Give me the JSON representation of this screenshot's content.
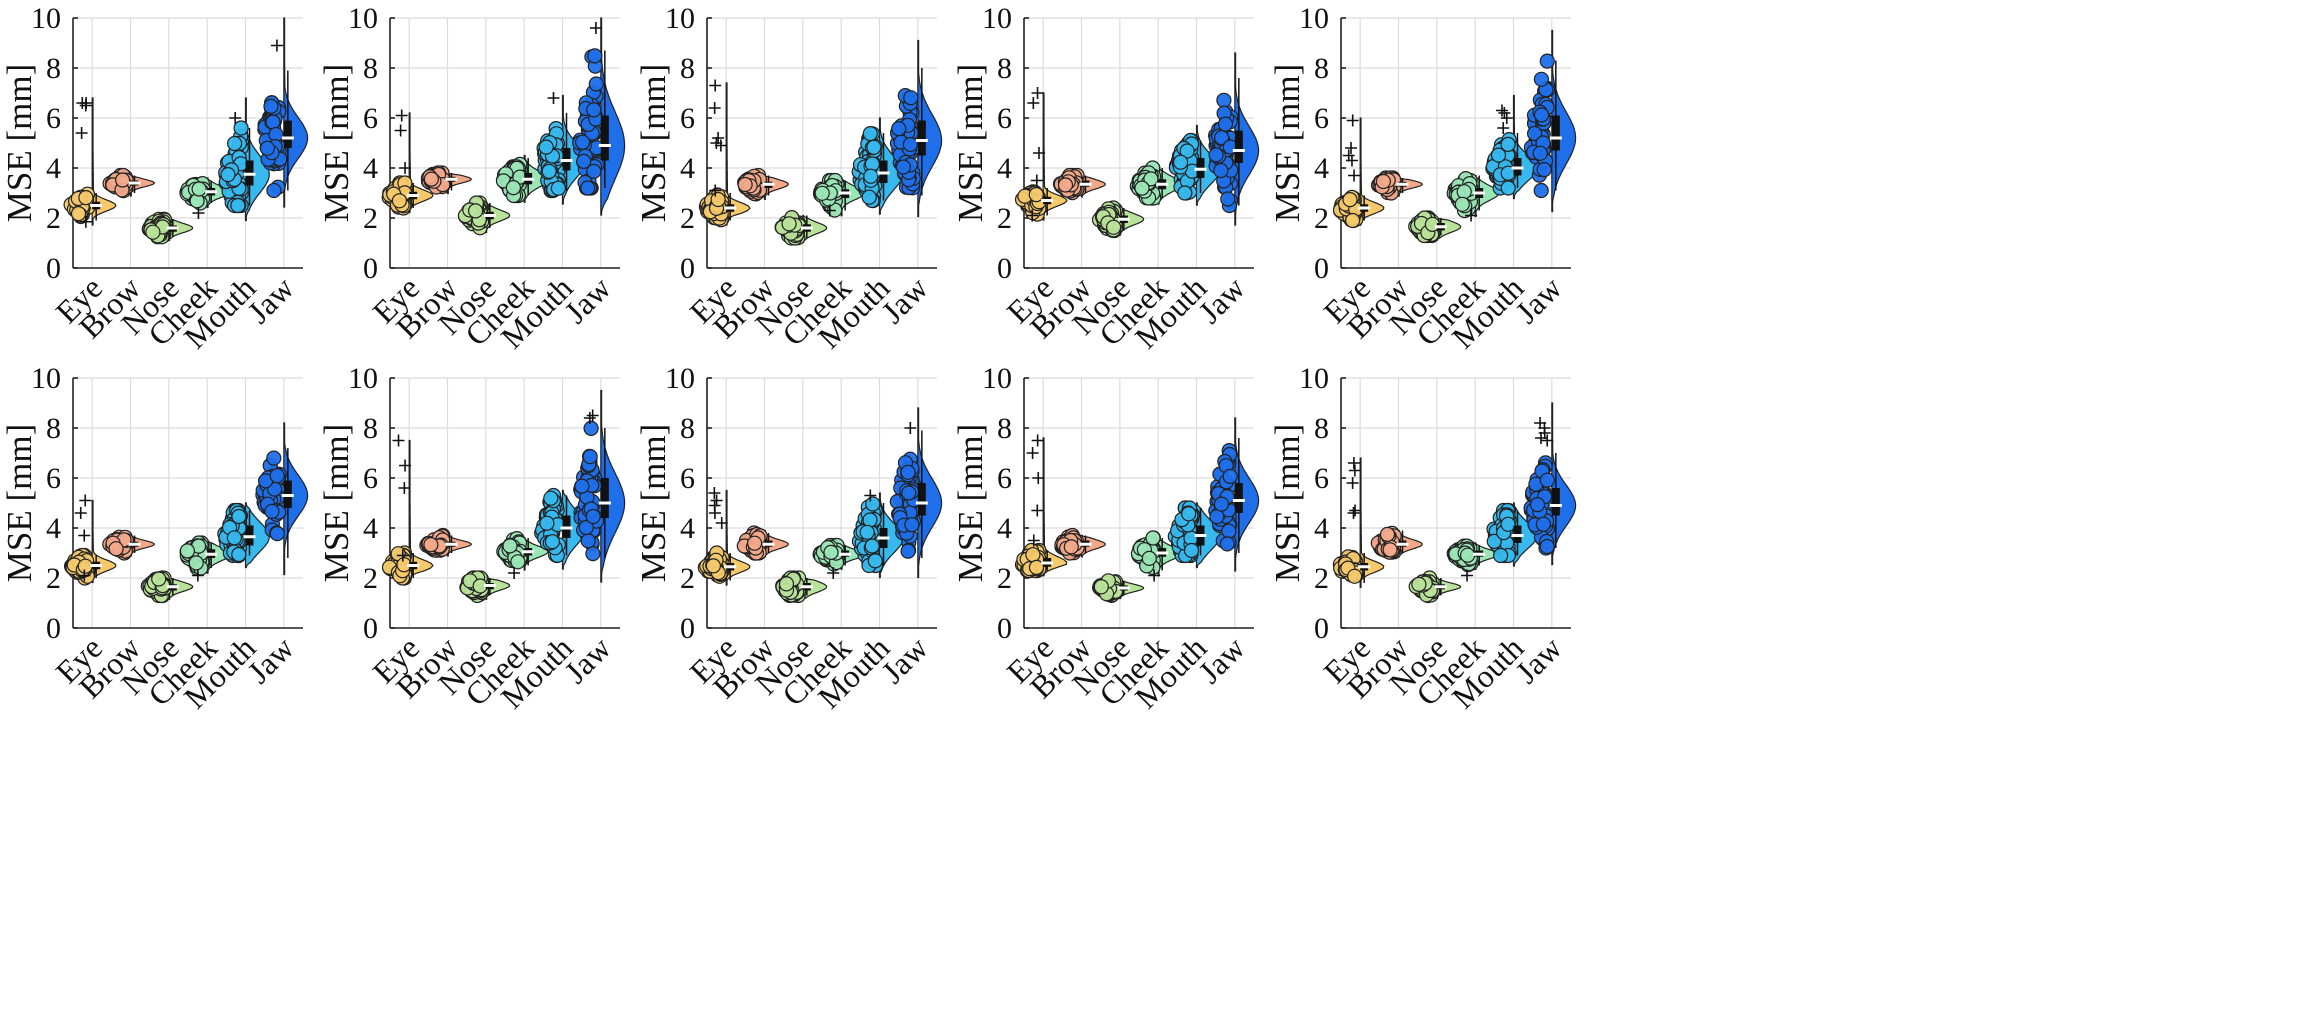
{
  "figure": {
    "layout": "2 rows x 5 columns of violin / beeswarm plots",
    "colors": {
      "Eye": "#F6C96B",
      "Brow": "#F2A98A",
      "Nose": "#B9E39A",
      "Cheek": "#9BE6B6",
      "Mouth": "#37B8EE",
      "Jaw": "#1F6FEA"
    }
  },
  "chart_data": [
    {
      "type": "violin",
      "ylabel": "MSE [mm]",
      "ylim": [
        0,
        10
      ],
      "yticks": [
        0,
        2,
        4,
        6,
        8,
        10
      ],
      "categories": [
        "Eye",
        "Brow",
        "Nose",
        "Cheek",
        "Mouth",
        "Jaw"
      ],
      "series": [
        {
          "name": "Eye",
          "q1": 2.35,
          "median": 2.5,
          "q3": 2.65,
          "whisker_low": 1.9,
          "whisker_high": 3.0,
          "outliers": [
            6.6,
            6.6,
            6.5,
            5.4,
            1.85
          ],
          "max": 6.8
        },
        {
          "name": "Brow",
          "q1": 3.3,
          "median": 3.4,
          "q3": 3.5,
          "whisker_low": 3.0,
          "whisker_high": 3.7,
          "outliers": [],
          "max": 3.7
        },
        {
          "name": "Nose",
          "q1": 1.45,
          "median": 1.6,
          "q3": 1.7,
          "whisker_low": 1.25,
          "whisker_high": 1.95,
          "outliers": [],
          "max": 2.0
        },
        {
          "name": "Cheek",
          "q1": 2.9,
          "median": 3.05,
          "q3": 3.2,
          "whisker_low": 2.6,
          "whisker_high": 3.5,
          "outliers": [
            2.2
          ],
          "max": 3.6
        },
        {
          "name": "Mouth",
          "q1": 3.3,
          "median": 3.75,
          "q3": 4.3,
          "whisker_low": 2.5,
          "whisker_high": 5.6,
          "outliers": [
            6.0
          ],
          "max": 6.8
        },
        {
          "name": "Jaw",
          "q1": 4.8,
          "median": 5.2,
          "q3": 5.9,
          "whisker_low": 3.1,
          "whisker_high": 7.9,
          "outliers": [
            8.9
          ],
          "max": 10.0
        }
      ]
    },
    {
      "type": "violin",
      "ylabel": "MSE [mm]",
      "ylim": [
        0,
        10
      ],
      "yticks": [
        0,
        2,
        4,
        6,
        8,
        10
      ],
      "categories": [
        "Eye",
        "Brow",
        "Nose",
        "Cheek",
        "Mouth",
        "Jaw"
      ],
      "series": [
        {
          "name": "Eye",
          "q1": 2.75,
          "median": 2.9,
          "q3": 3.05,
          "whisker_low": 2.4,
          "whisker_high": 3.4,
          "outliers": [
            6.1,
            5.5,
            4.0
          ],
          "max": 6.2
        },
        {
          "name": "Brow",
          "q1": 3.45,
          "median": 3.55,
          "q3": 3.65,
          "whisker_low": 3.1,
          "whisker_high": 3.8,
          "outliers": [],
          "max": 3.8
        },
        {
          "name": "Nose",
          "q1": 1.95,
          "median": 2.1,
          "q3": 2.25,
          "whisker_low": 1.6,
          "whisker_high": 2.6,
          "outliers": [],
          "max": 2.6
        },
        {
          "name": "Cheek",
          "q1": 3.35,
          "median": 3.55,
          "q3": 3.8,
          "whisker_low": 2.9,
          "whisker_high": 4.4,
          "outliers": [],
          "max": 4.5
        },
        {
          "name": "Mouth",
          "q1": 3.9,
          "median": 4.3,
          "q3": 4.8,
          "whisker_low": 3.1,
          "whisker_high": 6.2,
          "outliers": [
            6.8
          ],
          "max": 6.9
        },
        {
          "name": "Jaw",
          "q1": 4.3,
          "median": 4.9,
          "q3": 6.1,
          "whisker_low": 3.2,
          "whisker_high": 8.7,
          "outliers": [
            9.6
          ],
          "max": 10.0
        }
      ]
    },
    {
      "type": "violin",
      "ylabel": "MSE [mm]",
      "ylim": [
        0,
        10
      ],
      "yticks": [
        0,
        2,
        4,
        6,
        8,
        10
      ],
      "categories": [
        "Eye",
        "Brow",
        "Nose",
        "Cheek",
        "Mouth",
        "Jaw"
      ],
      "series": [
        {
          "name": "Eye",
          "q1": 2.25,
          "median": 2.4,
          "q3": 2.55,
          "whisker_low": 1.9,
          "whisker_high": 3.0,
          "outliers": [
            7.3,
            6.4,
            5.2,
            5.0,
            4.9,
            3.1
          ],
          "max": 7.4
        },
        {
          "name": "Brow",
          "q1": 3.2,
          "median": 3.35,
          "q3": 3.45,
          "whisker_low": 2.9,
          "whisker_high": 3.7,
          "outliers": [],
          "max": 3.7
        },
        {
          "name": "Nose",
          "q1": 1.45,
          "median": 1.6,
          "q3": 1.75,
          "whisker_low": 1.2,
          "whisker_high": 2.1,
          "outliers": [],
          "max": 2.1
        },
        {
          "name": "Cheek",
          "q1": 2.8,
          "median": 3.0,
          "q3": 3.15,
          "whisker_low": 2.3,
          "whisker_high": 3.5,
          "outliers": [
            2.3
          ],
          "max": 3.6
        },
        {
          "name": "Mouth",
          "q1": 3.4,
          "median": 3.8,
          "q3": 4.3,
          "whisker_low": 2.7,
          "whisker_high": 5.4,
          "outliers": [],
          "max": 6.0
        },
        {
          "name": "Jaw",
          "q1": 4.5,
          "median": 5.1,
          "q3": 5.9,
          "whisker_low": 2.9,
          "whisker_high": 8.0,
          "outliers": [],
          "max": 9.1
        }
      ]
    },
    {
      "type": "violin",
      "ylabel": "MSE [mm]",
      "ylim": [
        0,
        10
      ],
      "yticks": [
        0,
        2,
        4,
        6,
        8,
        10
      ],
      "categories": [
        "Eye",
        "Brow",
        "Nose",
        "Cheek",
        "Mouth",
        "Jaw"
      ],
      "series": [
        {
          "name": "Eye",
          "q1": 2.55,
          "median": 2.7,
          "q3": 2.85,
          "whisker_low": 2.1,
          "whisker_high": 3.2,
          "outliers": [
            7.0,
            6.6,
            4.6,
            3.5,
            2.1
          ],
          "max": 7.0
        },
        {
          "name": "Brow",
          "q1": 3.25,
          "median": 3.35,
          "q3": 3.5,
          "whisker_low": 3.0,
          "whisker_high": 3.7,
          "outliers": [],
          "max": 3.7
        },
        {
          "name": "Nose",
          "q1": 1.8,
          "median": 1.95,
          "q3": 2.1,
          "whisker_low": 1.5,
          "whisker_high": 2.4,
          "outliers": [],
          "max": 2.4
        },
        {
          "name": "Cheek",
          "q1": 3.15,
          "median": 3.35,
          "q3": 3.55,
          "whisker_low": 2.8,
          "whisker_high": 4.0,
          "outliers": [],
          "max": 4.0
        },
        {
          "name": "Mouth",
          "q1": 3.6,
          "median": 3.95,
          "q3": 4.4,
          "whisker_low": 3.0,
          "whisker_high": 5.1,
          "outliers": [],
          "max": 5.7
        },
        {
          "name": "Jaw",
          "q1": 4.2,
          "median": 4.7,
          "q3": 5.5,
          "whisker_low": 2.5,
          "whisker_high": 7.6,
          "outliers": [],
          "max": 8.6
        }
      ]
    },
    {
      "type": "violin",
      "ylabel": "MSE [mm]",
      "ylim": [
        0,
        10
      ],
      "yticks": [
        0,
        2,
        4,
        6,
        8,
        10
      ],
      "categories": [
        "Eye",
        "Brow",
        "Nose",
        "Cheek",
        "Mouth",
        "Jaw"
      ],
      "series": [
        {
          "name": "Eye",
          "q1": 2.25,
          "median": 2.4,
          "q3": 2.55,
          "whisker_low": 1.9,
          "whisker_high": 2.9,
          "outliers": [
            5.9,
            4.8,
            4.5,
            4.3,
            3.7
          ],
          "max": 6.0
        },
        {
          "name": "Brow",
          "q1": 3.25,
          "median": 3.35,
          "q3": 3.45,
          "whisker_low": 3.0,
          "whisker_high": 3.6,
          "outliers": [],
          "max": 3.6
        },
        {
          "name": "Nose",
          "q1": 1.5,
          "median": 1.65,
          "q3": 1.8,
          "whisker_low": 1.3,
          "whisker_high": 2.0,
          "outliers": [],
          "max": 2.0
        },
        {
          "name": "Cheek",
          "q1": 2.8,
          "median": 3.0,
          "q3": 3.2,
          "whisker_low": 2.3,
          "whisker_high": 3.7,
          "outliers": [
            2.1
          ],
          "max": 3.7
        },
        {
          "name": "Mouth",
          "q1": 3.7,
          "median": 4.0,
          "q3": 4.4,
          "whisker_low": 3.2,
          "whisker_high": 5.4,
          "outliers": [
            6.3,
            6.2,
            6.0,
            5.6
          ],
          "max": 6.9
        },
        {
          "name": "Jaw",
          "q1": 4.7,
          "median": 5.2,
          "q3": 6.1,
          "whisker_low": 3.1,
          "whisker_high": 8.3,
          "outliers": [],
          "max": 9.5
        }
      ]
    },
    {
      "type": "violin",
      "ylabel": "MSE [mm]",
      "ylim": [
        0,
        10
      ],
      "yticks": [
        0,
        2,
        4,
        6,
        8,
        10
      ],
      "categories": [
        "Eye",
        "Brow",
        "Nose",
        "Cheek",
        "Mouth",
        "Jaw"
      ],
      "series": [
        {
          "name": "Eye",
          "q1": 2.35,
          "median": 2.5,
          "q3": 2.65,
          "whisker_low": 2.0,
          "whisker_high": 2.9,
          "outliers": [
            5.1,
            4.6,
            3.7,
            2.1
          ],
          "max": 5.1
        },
        {
          "name": "Brow",
          "q1": 3.25,
          "median": 3.35,
          "q3": 3.45,
          "whisker_low": 3.0,
          "whisker_high": 3.7,
          "outliers": [],
          "max": 3.7
        },
        {
          "name": "Nose",
          "q1": 1.5,
          "median": 1.65,
          "q3": 1.75,
          "whisker_low": 1.3,
          "whisker_high": 2.0,
          "outliers": [],
          "max": 2.0
        },
        {
          "name": "Cheek",
          "q1": 2.8,
          "median": 2.95,
          "q3": 3.15,
          "whisker_low": 2.4,
          "whisker_high": 3.4,
          "outliers": [
            2.1
          ],
          "max": 3.5
        },
        {
          "name": "Mouth",
          "q1": 3.3,
          "median": 3.65,
          "q3": 4.1,
          "whisker_low": 2.9,
          "whisker_high": 4.7,
          "outliers": [],
          "max": 5.0
        },
        {
          "name": "Jaw",
          "q1": 4.8,
          "median": 5.3,
          "q3": 5.9,
          "whisker_low": 2.8,
          "whisker_high": 7.2,
          "outliers": [],
          "max": 8.2
        }
      ]
    },
    {
      "type": "violin",
      "ylabel": "MSE [mm]",
      "ylim": [
        0,
        10
      ],
      "yticks": [
        0,
        2,
        4,
        6,
        8,
        10
      ],
      "categories": [
        "Eye",
        "Brow",
        "Nose",
        "Cheek",
        "Mouth",
        "Jaw"
      ],
      "series": [
        {
          "name": "Eye",
          "q1": 2.35,
          "median": 2.5,
          "q3": 2.65,
          "whisker_low": 2.0,
          "whisker_high": 3.0,
          "outliers": [
            7.5,
            6.5,
            5.6,
            2.9
          ],
          "max": 7.5
        },
        {
          "name": "Brow",
          "q1": 3.25,
          "median": 3.35,
          "q3": 3.45,
          "whisker_low": 3.0,
          "whisker_high": 3.7,
          "outliers": [],
          "max": 3.7
        },
        {
          "name": "Nose",
          "q1": 1.55,
          "median": 1.7,
          "q3": 1.8,
          "whisker_low": 1.3,
          "whisker_high": 2.0,
          "outliers": [],
          "max": 2.0
        },
        {
          "name": "Cheek",
          "q1": 2.9,
          "median": 3.05,
          "q3": 3.2,
          "whisker_low": 2.5,
          "whisker_high": 3.6,
          "outliers": [
            2.2
          ],
          "max": 3.6
        },
        {
          "name": "Mouth",
          "q1": 3.6,
          "median": 4.0,
          "q3": 4.5,
          "whisker_low": 2.9,
          "whisker_high": 5.3,
          "outliers": [],
          "max": 5.5
        },
        {
          "name": "Jaw",
          "q1": 4.4,
          "median": 5.0,
          "q3": 6.0,
          "whisker_low": 2.8,
          "whisker_high": 8.0,
          "outliers": [
            8.4,
            8.5
          ],
          "max": 9.5
        }
      ]
    },
    {
      "type": "violin",
      "ylabel": "MSE [mm]",
      "ylim": [
        0,
        10
      ],
      "yticks": [
        0,
        2,
        4,
        6,
        8,
        10
      ],
      "categories": [
        "Eye",
        "Brow",
        "Nose",
        "Cheek",
        "Mouth",
        "Jaw"
      ],
      "series": [
        {
          "name": "Eye",
          "q1": 2.3,
          "median": 2.45,
          "q3": 2.6,
          "whisker_low": 1.9,
          "whisker_high": 3.0,
          "outliers": [
            5.4,
            5.1,
            4.9,
            4.6,
            4.2
          ],
          "max": 5.5
        },
        {
          "name": "Brow",
          "q1": 3.25,
          "median": 3.35,
          "q3": 3.5,
          "whisker_low": 3.0,
          "whisker_high": 3.8,
          "outliers": [],
          "max": 3.9
        },
        {
          "name": "Nose",
          "q1": 1.5,
          "median": 1.65,
          "q3": 1.8,
          "whisker_low": 1.3,
          "whisker_high": 2.0,
          "outliers": [],
          "max": 2.0
        },
        {
          "name": "Cheek",
          "q1": 2.85,
          "median": 2.95,
          "q3": 3.1,
          "whisker_low": 2.5,
          "whisker_high": 3.3,
          "outliers": [
            2.2
          ],
          "max": 3.4
        },
        {
          "name": "Mouth",
          "q1": 3.2,
          "median": 3.6,
          "q3": 4.0,
          "whisker_low": 2.5,
          "whisker_high": 5.0,
          "outliers": [
            5.3
          ],
          "max": 5.4
        },
        {
          "name": "Jaw",
          "q1": 4.5,
          "median": 5.0,
          "q3": 5.8,
          "whisker_low": 2.8,
          "whisker_high": 7.9,
          "outliers": [
            8.0
          ],
          "max": 8.8
        }
      ]
    },
    {
      "type": "violin",
      "ylabel": "MSE [mm]",
      "ylim": [
        0,
        10
      ],
      "yticks": [
        0,
        2,
        4,
        6,
        8,
        10
      ],
      "categories": [
        "Eye",
        "Brow",
        "Nose",
        "Cheek",
        "Mouth",
        "Jaw"
      ],
      "series": [
        {
          "name": "Eye",
          "q1": 2.45,
          "median": 2.6,
          "q3": 2.8,
          "whisker_low": 2.3,
          "whisker_high": 3.1,
          "outliers": [
            7.5,
            7.0,
            6.0,
            4.7,
            3.5
          ],
          "max": 7.6
        },
        {
          "name": "Brow",
          "q1": 3.25,
          "median": 3.35,
          "q3": 3.5,
          "whisker_low": 3.0,
          "whisker_high": 3.7,
          "outliers": [],
          "max": 3.7
        },
        {
          "name": "Nose",
          "q1": 1.5,
          "median": 1.6,
          "q3": 1.7,
          "whisker_low": 1.3,
          "whisker_high": 1.9,
          "outliers": [],
          "max": 1.9
        },
        {
          "name": "Cheek",
          "q1": 2.85,
          "median": 3.0,
          "q3": 3.2,
          "whisker_low": 2.3,
          "whisker_high": 3.6,
          "outliers": [
            2.1
          ],
          "max": 3.6
        },
        {
          "name": "Mouth",
          "q1": 3.3,
          "median": 3.7,
          "q3": 4.1,
          "whisker_low": 2.9,
          "whisker_high": 4.8,
          "outliers": [],
          "max": 5.0
        },
        {
          "name": "Jaw",
          "q1": 4.6,
          "median": 5.1,
          "q3": 5.8,
          "whisker_low": 3.0,
          "whisker_high": 7.6,
          "outliers": [],
          "max": 8.4
        }
      ]
    },
    {
      "type": "violin",
      "ylabel": "MSE [mm]",
      "ylim": [
        0,
        10
      ],
      "yticks": [
        0,
        2,
        4,
        6,
        8,
        10
      ],
      "categories": [
        "Eye",
        "Brow",
        "Nose",
        "Cheek",
        "Mouth",
        "Jaw"
      ],
      "series": [
        {
          "name": "Eye",
          "q1": 2.3,
          "median": 2.45,
          "q3": 2.6,
          "whisker_low": 1.8,
          "whisker_high": 3.0,
          "outliers": [
            6.6,
            6.3,
            5.8,
            4.7,
            4.6
          ],
          "max": 6.8
        },
        {
          "name": "Brow",
          "q1": 3.25,
          "median": 3.35,
          "q3": 3.5,
          "whisker_low": 3.0,
          "whisker_high": 3.9,
          "outliers": [],
          "max": 3.9
        },
        {
          "name": "Nose",
          "q1": 1.55,
          "median": 1.65,
          "q3": 1.75,
          "whisker_low": 1.3,
          "whisker_high": 2.0,
          "outliers": [],
          "max": 2.0
        },
        {
          "name": "Cheek",
          "q1": 2.85,
          "median": 2.95,
          "q3": 3.1,
          "whisker_low": 2.5,
          "whisker_high": 3.3,
          "outliers": [
            2.1
          ],
          "max": 3.4
        },
        {
          "name": "Mouth",
          "q1": 3.4,
          "median": 3.7,
          "q3": 4.1,
          "whisker_low": 2.9,
          "whisker_high": 4.7,
          "outliers": [],
          "max": 5.0
        },
        {
          "name": "Jaw",
          "q1": 4.5,
          "median": 4.9,
          "q3": 5.6,
          "whisker_low": 3.2,
          "whisker_high": 7.0,
          "outliers": [
            8.2,
            8.0,
            7.8,
            7.6,
            7.5
          ],
          "max": 9.0
        }
      ]
    }
  ]
}
